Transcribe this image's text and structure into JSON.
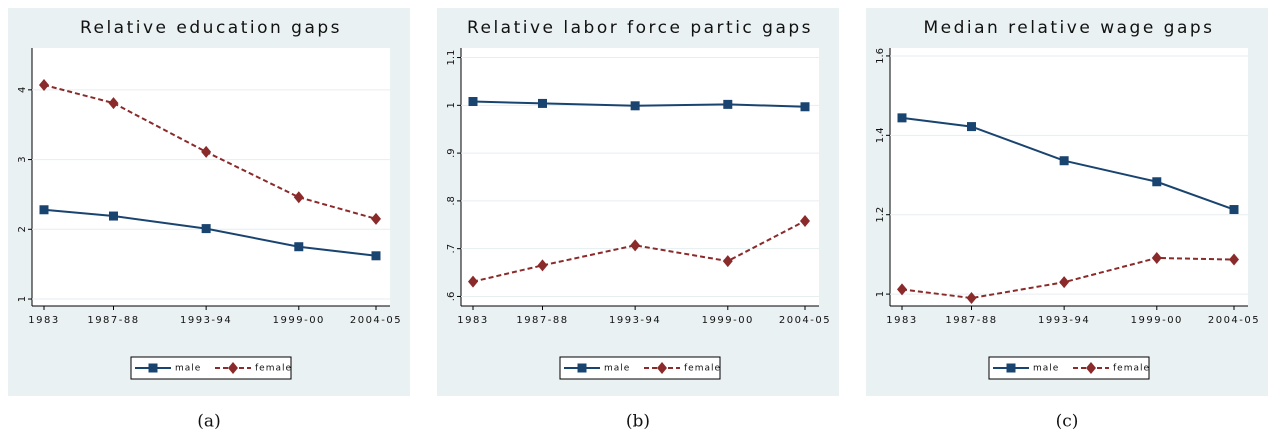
{
  "chart_data": [
    {
      "type": "line",
      "title": "Relative education gaps",
      "caption": "(a)",
      "categories": [
        "1983",
        "1987-88",
        "1993-94",
        "1999-00",
        "2004-05"
      ],
      "series": [
        {
          "name": "male",
          "color": "#1a4470",
          "marker": "square",
          "dash": false,
          "values": [
            2.28,
            2.19,
            2.01,
            1.75,
            1.62
          ]
        },
        {
          "name": "female",
          "color": "#8b2a2a",
          "marker": "diamond",
          "dash": true,
          "values": [
            4.07,
            3.81,
            3.11,
            2.46,
            2.15
          ]
        }
      ],
      "ylim": [
        0.9,
        4.6
      ],
      "yticks": [
        1,
        2,
        3,
        4
      ],
      "grid": true,
      "legend": "bottom"
    },
    {
      "type": "line",
      "title": "Relative labor force partic gaps",
      "caption": "(b)",
      "categories": [
        "1983",
        "1987-88",
        "1993-94",
        "1999-00",
        "2004-05"
      ],
      "series": [
        {
          "name": "male",
          "color": "#1a4470",
          "marker": "square",
          "dash": false,
          "values": [
            1.008,
            1.004,
            0.999,
            1.002,
            0.997
          ]
        },
        {
          "name": "female",
          "color": "#8b2a2a",
          "marker": "diamond",
          "dash": true,
          "values": [
            0.631,
            0.665,
            0.707,
            0.674,
            0.758
          ]
        }
      ],
      "ylim": [
        0.58,
        1.12
      ],
      "yticks": [
        {
          "value": 0.6,
          "label": ".6"
        },
        {
          "value": 0.7,
          "label": ".7"
        },
        {
          "value": 0.8,
          "label": ".8"
        },
        {
          "value": 0.9,
          "label": ".9"
        },
        1,
        {
          "value": 1.1,
          "label": "1.1"
        }
      ],
      "grid": true,
      "legend": "bottom"
    },
    {
      "type": "line",
      "title": "Median relative wage gaps",
      "caption": "(c)",
      "categories": [
        "1983",
        "1987-88",
        "1993-94",
        "1999-00",
        "2004-05"
      ],
      "series": [
        {
          "name": "male",
          "color": "#1a4470",
          "marker": "square",
          "dash": false,
          "values": [
            1.444,
            1.422,
            1.336,
            1.283,
            1.213
          ]
        },
        {
          "name": "female",
          "color": "#8b2a2a",
          "marker": "diamond",
          "dash": true,
          "values": [
            1.012,
            0.99,
            1.03,
            1.091,
            1.087
          ]
        }
      ],
      "ylim": [
        0.97,
        1.62
      ],
      "yticks": [
        1,
        1.2,
        1.4,
        1.6
      ],
      "grid": true,
      "legend": "bottom"
    }
  ]
}
